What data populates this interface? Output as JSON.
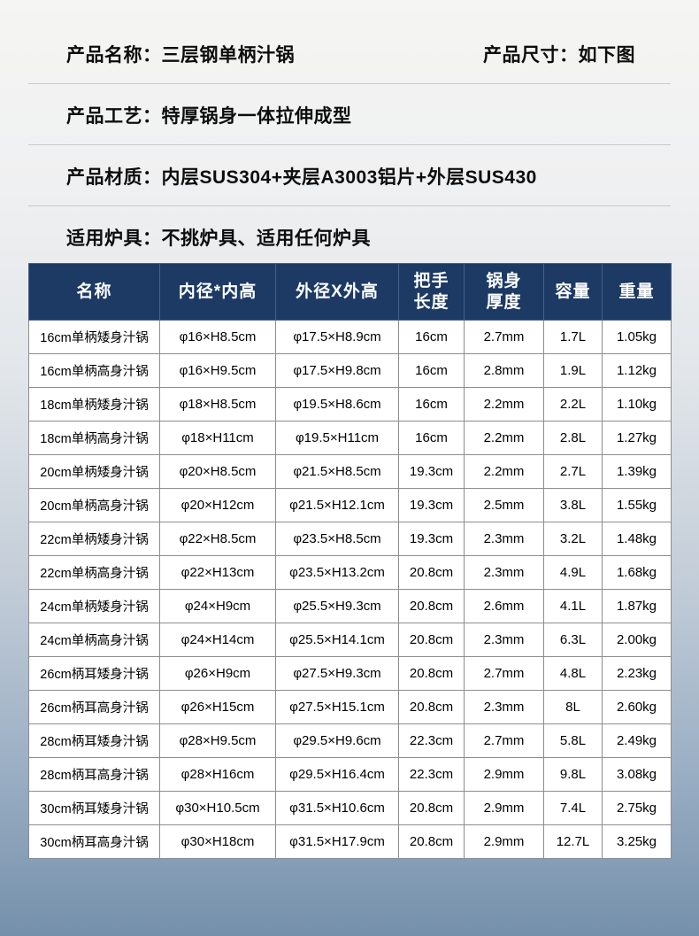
{
  "info": {
    "name_label": "产品名称：",
    "name_value": "三层钢单柄汁锅",
    "size_label": "产品尺寸：",
    "size_value": "如下图",
    "craft_label": "产品工艺：",
    "craft_value": "特厚锅身一体拉伸成型",
    "material_label": "产品材质：",
    "material_value": "内层SUS304+夹层A3003铝片+外层SUS430",
    "stove_label": "适用炉具：",
    "stove_value": "不挑炉具、适用任何炉具"
  },
  "table": {
    "header_bg": "#1c3a64",
    "headers": [
      [
        "名称"
      ],
      [
        "内径*内高"
      ],
      [
        "外径X外高"
      ],
      [
        "把手",
        "长度"
      ],
      [
        "锅身",
        "厚度"
      ],
      [
        "容量"
      ],
      [
        "重量"
      ]
    ],
    "rows": [
      [
        "16cm单柄矮身汁锅",
        "φ16×H8.5cm",
        "φ17.5×H8.9cm",
        "16cm",
        "2.7mm",
        "1.7L",
        "1.05kg"
      ],
      [
        "16cm单柄高身汁锅",
        "φ16×H9.5cm",
        "φ17.5×H9.8cm",
        "16cm",
        "2.8mm",
        "1.9L",
        "1.12kg"
      ],
      [
        "18cm单柄矮身汁锅",
        "φ18×H8.5cm",
        "φ19.5×H8.6cm",
        "16cm",
        "2.2mm",
        "2.2L",
        "1.10kg"
      ],
      [
        "18cm单柄高身汁锅",
        "φ18×H11cm",
        "φ19.5×H11cm",
        "16cm",
        "2.2mm",
        "2.8L",
        "1.27kg"
      ],
      [
        "20cm单柄矮身汁锅",
        "φ20×H8.5cm",
        "φ21.5×H8.5cm",
        "19.3cm",
        "2.2mm",
        "2.7L",
        "1.39kg"
      ],
      [
        "20cm单柄高身汁锅",
        "φ20×H12cm",
        "φ21.5×H12.1cm",
        "19.3cm",
        "2.5mm",
        "3.8L",
        "1.55kg"
      ],
      [
        "22cm单柄矮身汁锅",
        "φ22×H8.5cm",
        "φ23.5×H8.5cm",
        "19.3cm",
        "2.3mm",
        "3.2L",
        "1.48kg"
      ],
      [
        "22cm单柄高身汁锅",
        "φ22×H13cm",
        "φ23.5×H13.2cm",
        "20.8cm",
        "2.3mm",
        "4.9L",
        "1.68kg"
      ],
      [
        "24cm单柄矮身汁锅",
        "φ24×H9cm",
        "φ25.5×H9.3cm",
        "20.8cm",
        "2.6mm",
        "4.1L",
        "1.87kg"
      ],
      [
        "24cm单柄高身汁锅",
        "φ24×H14cm",
        "φ25.5×H14.1cm",
        "20.8cm",
        "2.3mm",
        "6.3L",
        "2.00kg"
      ],
      [
        "26cm柄耳矮身汁锅",
        "φ26×H9cm",
        "φ27.5×H9.3cm",
        "20.8cm",
        "2.7mm",
        "4.8L",
        "2.23kg"
      ],
      [
        "26cm柄耳高身汁锅",
        "φ26×H15cm",
        "φ27.5×H15.1cm",
        "20.8cm",
        "2.3mm",
        "8L",
        "2.60kg"
      ],
      [
        "28cm柄耳矮身汁锅",
        "φ28×H9.5cm",
        "φ29.5×H9.6cm",
        "22.3cm",
        "2.7mm",
        "5.8L",
        "2.49kg"
      ],
      [
        "28cm柄耳高身汁锅",
        "φ28×H16cm",
        "φ29.5×H16.4cm",
        "22.3cm",
        "2.9mm",
        "9.8L",
        "3.08kg"
      ],
      [
        "30cm柄耳矮身汁锅",
        "φ30×H10.5cm",
        "φ31.5×H10.6cm",
        "20.8cm",
        "2.9mm",
        "7.4L",
        "2.75kg"
      ],
      [
        "30cm柄耳高身汁锅",
        "φ30×H18cm",
        "φ31.5×H17.9cm",
        "20.8cm",
        "2.9mm",
        "12.7L",
        "3.25kg"
      ]
    ]
  }
}
